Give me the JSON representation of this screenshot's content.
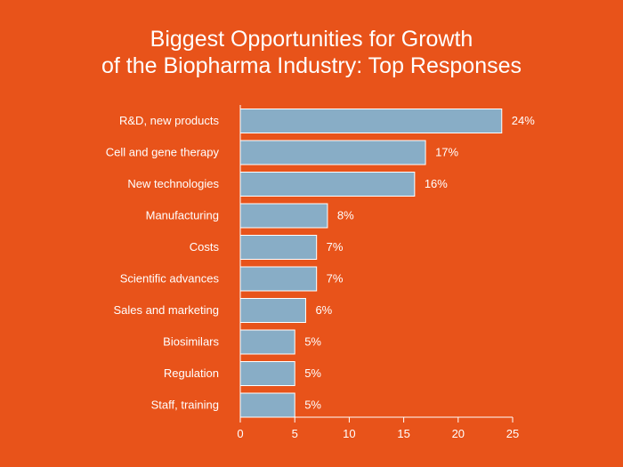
{
  "colors": {
    "background": "#E8531A",
    "bar": "#88ADC6",
    "bar_stroke": "#FFFFFF",
    "axis": "#FFFFFF",
    "text": "#FFFFFF"
  },
  "chart_data": {
    "type": "bar",
    "orientation": "horizontal",
    "title_lines": [
      "Biggest Opportunities for Growth",
      "of the Biopharma Industry: Top Responses"
    ],
    "categories": [
      "R&D, new products",
      "Cell and gene therapy",
      "New technologies",
      "Manufacturing",
      "Costs",
      "Scientific advances",
      "Sales and marketing",
      "Biosimilars",
      "Regulation",
      "Staff, training"
    ],
    "values": [
      24,
      17,
      16,
      8,
      7,
      7,
      6,
      5,
      5,
      5
    ],
    "value_labels": [
      "24%",
      "17%",
      "16%",
      "8%",
      "7%",
      "7%",
      "6%",
      "5%",
      "5%",
      "5%"
    ],
    "xlim": [
      0,
      25
    ],
    "xticks": [
      0,
      5,
      10,
      15,
      20,
      25
    ],
    "xtick_labels": [
      "0",
      "5",
      "10",
      "15",
      "20",
      "25"
    ],
    "grid": false,
    "legend": "none"
  }
}
